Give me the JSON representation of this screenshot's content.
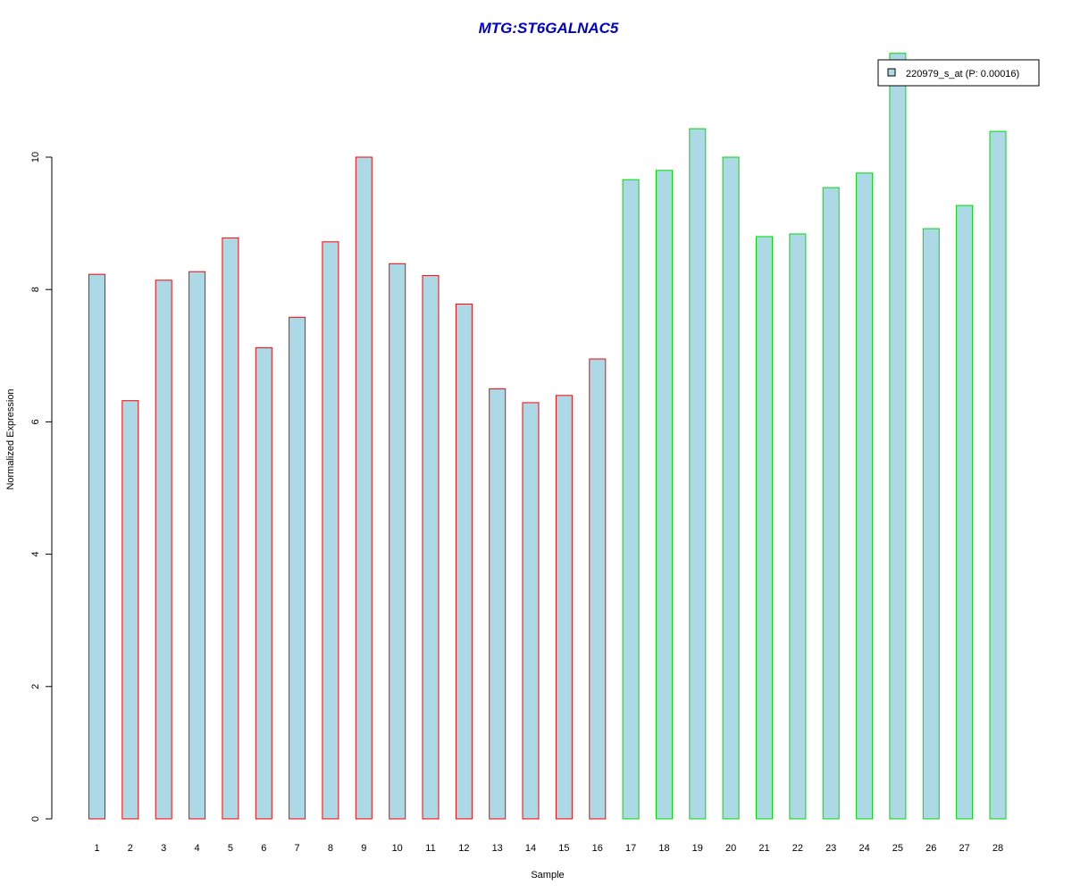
{
  "chart_data": {
    "type": "bar",
    "title": "MTG:ST6GALNAC5",
    "title_color": "#0000CC",
    "xlabel": "Sample",
    "ylabel": "Normalized Expression",
    "categories": [
      "1",
      "2",
      "3",
      "4",
      "5",
      "6",
      "7",
      "8",
      "9",
      "10",
      "11",
      "12",
      "13",
      "14",
      "15",
      "16",
      "17",
      "18",
      "19",
      "20",
      "21",
      "22",
      "23",
      "24",
      "25",
      "26",
      "27",
      "28"
    ],
    "values": [
      8.23,
      6.32,
      8.14,
      8.27,
      8.78,
      7.12,
      7.58,
      8.72,
      10.0,
      8.39,
      8.21,
      7.78,
      6.5,
      6.29,
      6.4,
      6.95,
      9.66,
      9.8,
      10.43,
      10.0,
      8.8,
      8.84,
      9.54,
      9.76,
      11.57,
      8.92,
      9.27,
      10.39
    ],
    "group_colors": {
      "group1": "#FF0000",
      "group2": "#00DD00"
    },
    "groups": [
      1,
      1,
      1,
      1,
      1,
      1,
      1,
      1,
      1,
      1,
      1,
      1,
      1,
      1,
      1,
      1,
      2,
      2,
      2,
      2,
      2,
      2,
      2,
      2,
      2,
      2,
      2,
      2
    ],
    "fill_color": "#ADD8E6",
    "yticks": [
      0,
      2,
      4,
      6,
      8,
      10
    ],
    "ylim": [
      0,
      11.57
    ],
    "grid": false,
    "legend": {
      "position": "top-right",
      "entries": [
        {
          "label": "220979_s_at (P: 0.00016)",
          "color": "#ADD8E6"
        }
      ]
    }
  }
}
